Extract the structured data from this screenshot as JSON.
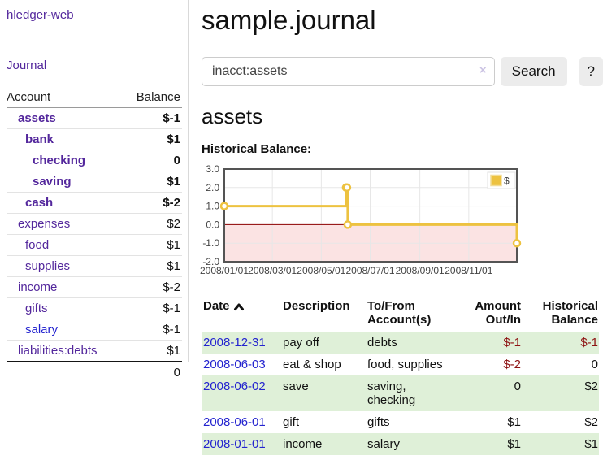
{
  "sidebar": {
    "brand": "hledger-web",
    "nav_journal": "Journal",
    "table": {
      "headers": {
        "account": "Account",
        "balance": "Balance"
      },
      "rows": [
        {
          "account": "assets",
          "balance": "$-1",
          "level": 1,
          "bold": true,
          "balance_style": "negative",
          "link_style": "visited"
        },
        {
          "account": "bank",
          "balance": "$1",
          "level": 2,
          "bold": true,
          "balance_style": "normal",
          "link_style": "visited"
        },
        {
          "account": "checking",
          "balance": "0",
          "level": 3,
          "bold": true,
          "balance_style": "normal",
          "link_style": "visited"
        },
        {
          "account": "saving",
          "balance": "$1",
          "level": 3,
          "bold": true,
          "balance_style": "normal",
          "link_style": "visited"
        },
        {
          "account": "cash",
          "balance": "$-2",
          "level": 2,
          "bold": true,
          "balance_style": "negative",
          "link_style": "visited"
        },
        {
          "account": "expenses",
          "balance": "$2",
          "level": 1,
          "bold": false,
          "balance_style": "normal",
          "link_style": "visited"
        },
        {
          "account": "food",
          "balance": "$1",
          "level": 2,
          "bold": false,
          "balance_style": "normal",
          "link_style": "visited"
        },
        {
          "account": "supplies",
          "balance": "$1",
          "level": 2,
          "bold": false,
          "balance_style": "normal",
          "link_style": "visited"
        },
        {
          "account": "income",
          "balance": "$-2",
          "level": 1,
          "bold": false,
          "balance_style": "negative-soft",
          "link_style": "visited"
        },
        {
          "account": "gifts",
          "balance": "$-1",
          "level": 2,
          "bold": false,
          "balance_style": "negative-soft",
          "link_style": "visited"
        },
        {
          "account": "salary",
          "balance": "$-1",
          "level": 2,
          "bold": false,
          "balance_style": "negative-soft",
          "link_style": "unvisited"
        },
        {
          "account": "liabilities:debts",
          "balance": "$1",
          "level": 1,
          "bold": false,
          "balance_style": "normal",
          "link_style": "visited"
        }
      ],
      "total": "0"
    }
  },
  "header": {
    "title": "sample.journal"
  },
  "search": {
    "value": "inacct:assets",
    "clear_icon": "×",
    "button": "Search",
    "help_button": "?"
  },
  "account_page": {
    "heading": "assets",
    "chart_label": "Historical Balance:"
  },
  "chart_data": {
    "type": "line",
    "title": "Historical Balance",
    "series": [
      {
        "name": "$",
        "color": "#edc240",
        "step": true,
        "points": [
          {
            "date": "2008-01-01",
            "value": 1
          },
          {
            "date": "2008-06-01",
            "value": 2
          },
          {
            "date": "2008-06-02",
            "value": 2
          },
          {
            "date": "2008-06-03",
            "value": 0
          },
          {
            "date": "2008-12-31",
            "value": -1
          }
        ]
      }
    ],
    "x_range": [
      "2008-01-01",
      "2008-12-31"
    ],
    "y_range": [
      -2,
      3
    ],
    "x_ticks": [
      "2008/01/01",
      "2008/03/01",
      "2008/05/01",
      "2008/07/01",
      "2008/09/01",
      "2008/11/01"
    ],
    "y_ticks": [
      "3.0",
      "2.0",
      "1.0",
      "0.0",
      "-1.0",
      "-2.0"
    ],
    "grid": true,
    "legend_position": "top-right",
    "legend_label": "$",
    "zero_line_color": "#8b0000",
    "negative_region_color": "#fbe3e3",
    "border_color": "#545454",
    "grid_color": "#e7e7e7"
  },
  "register": {
    "columns": [
      {
        "label": "Date",
        "sort": "ascending",
        "align": "left"
      },
      {
        "label": "Description",
        "align": "left"
      },
      {
        "label": "To/From Account(s)",
        "align": "left"
      },
      {
        "label": "Amount Out/In",
        "align": "right"
      },
      {
        "label": "Historical Balance",
        "align": "right"
      }
    ],
    "rows": [
      {
        "date": "2008-12-31",
        "description": "pay off",
        "accounts": "debts",
        "amount": "$-1",
        "amount_style": "negative",
        "balance": "$-1",
        "balance_style": "negative",
        "shaded": true
      },
      {
        "date": "2008-06-03",
        "description": "eat & shop",
        "accounts": "food, supplies",
        "amount": "$-2",
        "amount_style": "negative",
        "balance": "0",
        "balance_style": "normal",
        "shaded": false
      },
      {
        "date": "2008-06-02",
        "description": "save",
        "accounts": "saving, checking",
        "amount": "0",
        "amount_style": "normal",
        "balance": "$2",
        "balance_style": "normal",
        "shaded": true
      },
      {
        "date": "2008-06-01",
        "description": "gift",
        "accounts": "gifts",
        "amount": "$1",
        "amount_style": "normal",
        "balance": "$2",
        "balance_style": "normal",
        "shaded": false
      },
      {
        "date": "2008-01-01",
        "description": "income",
        "accounts": "salary",
        "amount": "$1",
        "amount_style": "normal",
        "balance": "$1",
        "balance_style": "normal",
        "shaded": true
      }
    ]
  },
  "colors": {
    "link_visited_purple": "#53279c",
    "link_unvisited_blue": "#2323cf",
    "negative": "#8e1313",
    "negative_soft": "#c3737d",
    "row_highlight_green": "#dff0d8",
    "chart_series_gold": "#edc240",
    "button_gray": "#ececec"
  }
}
